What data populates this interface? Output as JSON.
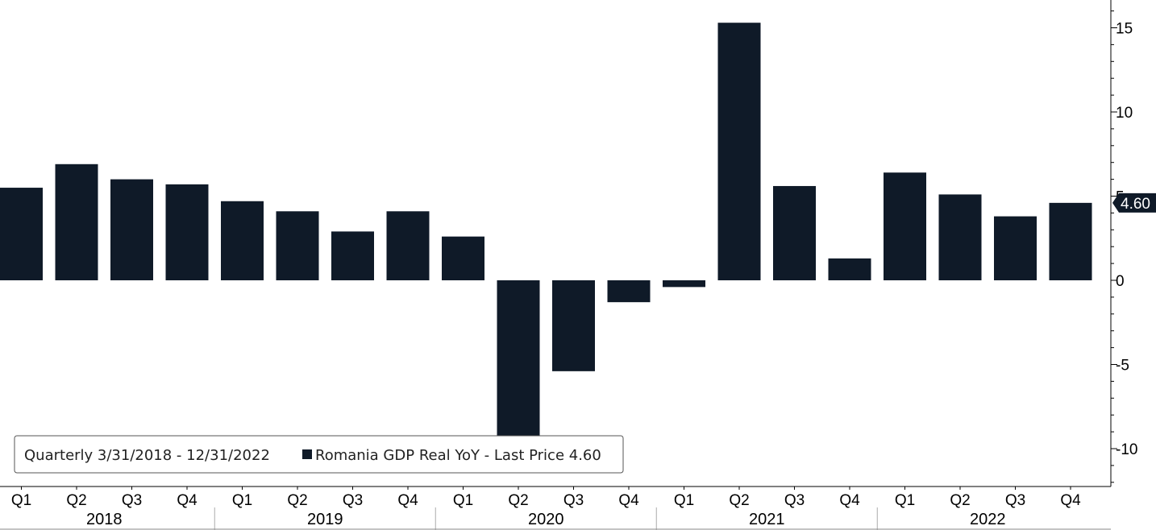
{
  "chart_data": {
    "type": "bar",
    "quarters": [
      "Q1",
      "Q2",
      "Q3",
      "Q4",
      "Q1",
      "Q2",
      "Q3",
      "Q4",
      "Q1",
      "Q2",
      "Q3",
      "Q4",
      "Q1",
      "Q2",
      "Q3",
      "Q4",
      "Q1",
      "Q2",
      "Q3",
      "Q4"
    ],
    "years": [
      "2018",
      "2019",
      "2020",
      "2021",
      "2022"
    ],
    "values": [
      5.5,
      6.9,
      6.0,
      5.7,
      4.7,
      4.1,
      2.9,
      4.1,
      2.6,
      -9.8,
      -5.4,
      -1.3,
      -0.4,
      15.3,
      5.6,
      1.3,
      6.4,
      5.1,
      3.8,
      4.6
    ],
    "series": [
      {
        "name": "Romania GDP Real YoY - Last Price 4.60",
        "color": "#0f1a28"
      }
    ],
    "y_ticks": [
      15,
      10,
      5,
      0,
      -5,
      -10
    ],
    "ylim": [
      -12.3,
      16.6
    ],
    "last_price": "4.60",
    "legend_period": "Quarterly 3/31/2018 - 12/31/2022",
    "legend_position": "bottom-left",
    "grid": false,
    "colors": {
      "bar": "#0f1a28",
      "last_label_bg": "#0f1a28",
      "overlap_bar": "#7f8186"
    }
  }
}
